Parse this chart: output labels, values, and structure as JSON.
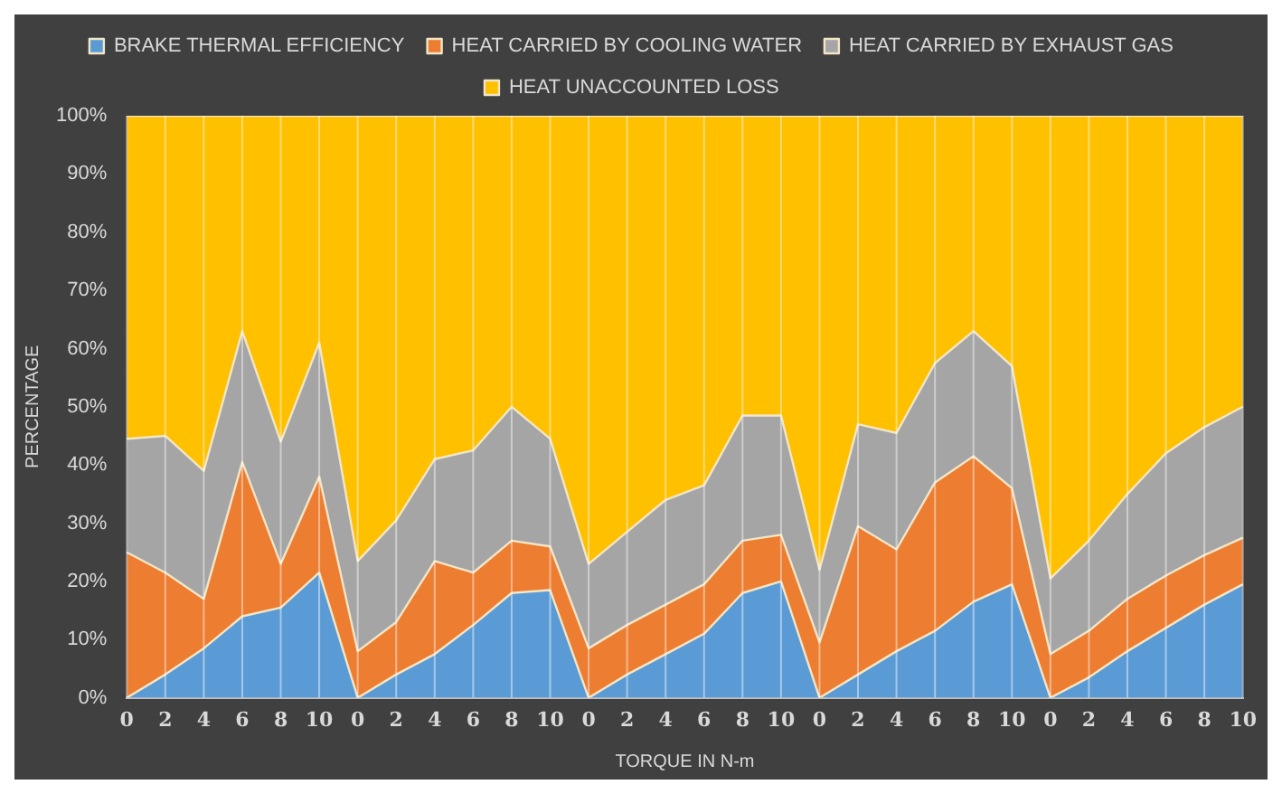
{
  "chart_data": {
    "type": "area",
    "stacked": true,
    "xlabel": "TORQUE IN N-m",
    "ylabel": "PERCENTAGE",
    "categories": [
      "0",
      "2",
      "4",
      "6",
      "8",
      "10",
      "0",
      "2",
      "4",
      "6",
      "8",
      "10",
      "0",
      "2",
      "4",
      "6",
      "8",
      "10",
      "0",
      "2",
      "4",
      "6",
      "8",
      "10",
      "0",
      "2",
      "4",
      "6",
      "8",
      "10"
    ],
    "series": [
      {
        "name": "BRAKE THERMAL EFFICIENCY",
        "color": "#5b9bd5",
        "values": [
          0,
          4,
          8.5,
          14,
          15.5,
          21.5,
          0,
          4,
          7.5,
          12.5,
          18,
          18.5,
          0,
          4,
          7.5,
          11,
          18,
          20,
          0,
          4,
          8,
          11.5,
          16.5,
          19.5,
          0,
          3.5,
          8,
          12,
          16,
          19.5
        ]
      },
      {
        "name": "HEAT CARRIED BY COOLING WATER",
        "color": "#ed7d31",
        "values": [
          25,
          17.5,
          8.5,
          26.5,
          7.5,
          16.5,
          8,
          9,
          16,
          9,
          9,
          7.5,
          8.5,
          8.5,
          8.5,
          8.5,
          9,
          8,
          9.5,
          25.5,
          17.5,
          25.5,
          25,
          16.5,
          7.5,
          8,
          9,
          9,
          8.5,
          8
        ]
      },
      {
        "name": "HEAT CARRIED BY EXHAUST GAS",
        "color": "#a5a5a5",
        "values": [
          19.5,
          23.5,
          22,
          22.5,
          21,
          23,
          15.5,
          17.5,
          17.5,
          21,
          23,
          18.5,
          14.5,
          16,
          18,
          17,
          21.5,
          20.5,
          12.5,
          17.5,
          20,
          20.5,
          21.5,
          21,
          13,
          15.5,
          18,
          21,
          22,
          22.5
        ]
      },
      {
        "name": "HEAT UNACCOUNTED LOSS",
        "color": "#ffc000",
        "values": [
          55.5,
          55,
          61,
          37,
          56,
          39,
          76.5,
          69.5,
          59,
          57.5,
          50,
          55.5,
          77,
          71.5,
          66,
          63.5,
          51.5,
          51.5,
          78,
          53,
          54.5,
          42.5,
          37,
          43,
          79.5,
          73,
          65,
          58,
          53.5,
          50
        ]
      }
    ],
    "ylim": [
      0,
      100
    ],
    "yticks": [
      {
        "value": 0,
        "label": "0%"
      },
      {
        "value": 10,
        "label": "10%"
      },
      {
        "value": 20,
        "label": "20%"
      },
      {
        "value": 30,
        "label": "30%"
      },
      {
        "value": 40,
        "label": "40%"
      },
      {
        "value": 50,
        "label": "50%"
      },
      {
        "value": 60,
        "label": "60%"
      },
      {
        "value": 70,
        "label": "70%"
      },
      {
        "value": 80,
        "label": "80%"
      },
      {
        "value": 90,
        "label": "90%"
      },
      {
        "value": 100,
        "label": "100%"
      }
    ],
    "grid": "x",
    "legend": "top"
  }
}
